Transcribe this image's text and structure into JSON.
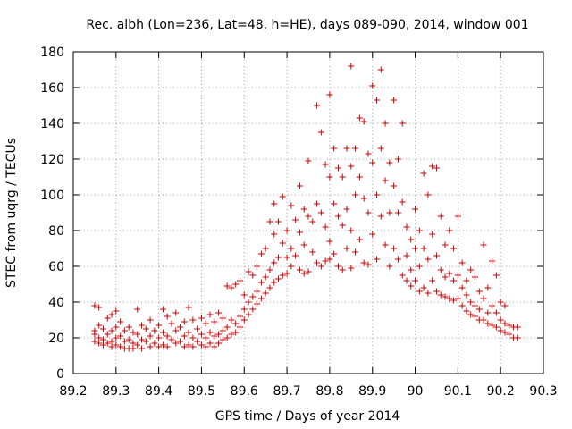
{
  "chart_data": {
    "type": "scatter",
    "title": "Rec. albh (Lon=236, Lat=48, h=HE), days 089-090, 2014, window 001",
    "xlabel": "GPS time / Days of year 2014",
    "ylabel": "STEC from uqrg / TECUs",
    "xlim": [
      89.2,
      90.3
    ],
    "ylim": [
      0,
      180
    ],
    "xticks": [
      89.2,
      89.3,
      89.4,
      89.5,
      89.6,
      89.7,
      89.8,
      89.9,
      90,
      90.1,
      90.2,
      90.3
    ],
    "xtick_labels": [
      "89.2",
      "89.3",
      "89.4",
      "89.5",
      "89.6",
      "89.7",
      "89.8",
      "89.9",
      "90",
      "90.1",
      "90.2",
      "90.3"
    ],
    "yticks": [
      0,
      20,
      40,
      60,
      80,
      100,
      120,
      140,
      160,
      180
    ],
    "ytick_labels": [
      "0",
      "20",
      "40",
      "60",
      "80",
      "100",
      "120",
      "140",
      "160",
      "180"
    ],
    "grid": true,
    "marker": "+",
    "color": "#cc0000",
    "series": [
      {
        "name": "STEC",
        "points": [
          [
            89.25,
            38
          ],
          [
            89.25,
            24
          ],
          [
            89.25,
            22
          ],
          [
            89.25,
            18
          ],
          [
            89.26,
            37
          ],
          [
            89.26,
            27
          ],
          [
            89.26,
            20
          ],
          [
            89.26,
            17
          ],
          [
            89.27,
            25
          ],
          [
            89.27,
            19
          ],
          [
            89.27,
            16
          ],
          [
            89.28,
            31
          ],
          [
            89.28,
            22
          ],
          [
            89.28,
            17
          ],
          [
            89.29,
            33
          ],
          [
            89.29,
            24
          ],
          [
            89.29,
            18
          ],
          [
            89.29,
            15
          ],
          [
            89.3,
            35
          ],
          [
            89.3,
            26
          ],
          [
            89.3,
            20
          ],
          [
            89.3,
            16
          ],
          [
            89.31,
            29
          ],
          [
            89.31,
            21
          ],
          [
            89.31,
            15
          ],
          [
            89.32,
            24
          ],
          [
            89.32,
            18
          ],
          [
            89.32,
            14
          ],
          [
            89.33,
            26
          ],
          [
            89.33,
            19
          ],
          [
            89.33,
            14
          ],
          [
            89.34,
            23
          ],
          [
            89.34,
            17
          ],
          [
            89.34,
            14
          ],
          [
            89.35,
            36
          ],
          [
            89.35,
            22
          ],
          [
            89.35,
            16
          ],
          [
            89.36,
            27
          ],
          [
            89.36,
            19
          ],
          [
            89.36,
            14
          ],
          [
            89.37,
            25
          ],
          [
            89.37,
            18
          ],
          [
            89.38,
            30
          ],
          [
            89.38,
            21
          ],
          [
            89.38,
            15
          ],
          [
            89.39,
            24
          ],
          [
            89.39,
            17
          ],
          [
            89.4,
            27
          ],
          [
            89.4,
            20
          ],
          [
            89.4,
            15
          ],
          [
            89.41,
            36
          ],
          [
            89.41,
            23
          ],
          [
            89.41,
            16
          ],
          [
            89.42,
            32
          ],
          [
            89.42,
            21
          ],
          [
            89.42,
            15
          ],
          [
            89.43,
            28
          ],
          [
            89.43,
            19
          ],
          [
            89.44,
            34
          ],
          [
            89.44,
            24
          ],
          [
            89.44,
            17
          ],
          [
            89.45,
            26
          ],
          [
            89.45,
            18
          ],
          [
            89.46,
            29
          ],
          [
            89.46,
            21
          ],
          [
            89.46,
            15
          ],
          [
            89.47,
            37
          ],
          [
            89.47,
            23
          ],
          [
            89.47,
            16
          ],
          [
            89.48,
            30
          ],
          [
            89.48,
            20
          ],
          [
            89.48,
            15
          ],
          [
            89.49,
            25
          ],
          [
            89.49,
            18
          ],
          [
            89.5,
            31
          ],
          [
            89.5,
            22
          ],
          [
            89.5,
            16
          ],
          [
            89.51,
            28
          ],
          [
            89.51,
            20
          ],
          [
            89.51,
            15
          ],
          [
            89.52,
            33
          ],
          [
            89.52,
            23
          ],
          [
            89.52,
            17
          ],
          [
            89.53,
            29
          ],
          [
            89.53,
            21
          ],
          [
            89.53,
            15
          ],
          [
            89.54,
            34
          ],
          [
            89.54,
            22
          ],
          [
            89.54,
            17
          ],
          [
            89.55,
            31
          ],
          [
            89.55,
            24
          ],
          [
            89.55,
            19
          ],
          [
            89.56,
            49
          ],
          [
            89.56,
            26
          ],
          [
            89.56,
            20
          ],
          [
            89.57,
            48
          ],
          [
            89.57,
            30
          ],
          [
            89.57,
            22
          ],
          [
            89.58,
            50
          ],
          [
            89.58,
            28
          ],
          [
            89.58,
            23
          ],
          [
            89.59,
            52
          ],
          [
            89.59,
            32
          ],
          [
            89.59,
            26
          ],
          [
            89.6,
            44
          ],
          [
            89.6,
            36
          ],
          [
            89.6,
            30
          ],
          [
            89.61,
            57
          ],
          [
            89.61,
            40
          ],
          [
            89.61,
            33
          ],
          [
            89.62,
            55
          ],
          [
            89.62,
            43
          ],
          [
            89.62,
            36
          ],
          [
            89.63,
            60
          ],
          [
            89.63,
            46
          ],
          [
            89.63,
            39
          ],
          [
            89.64,
            67
          ],
          [
            89.64,
            51
          ],
          [
            89.64,
            42
          ],
          [
            89.65,
            70
          ],
          [
            89.65,
            54
          ],
          [
            89.65,
            45
          ],
          [
            89.66,
            85
          ],
          [
            89.66,
            58
          ],
          [
            89.66,
            48
          ],
          [
            89.67,
            95
          ],
          [
            89.67,
            78
          ],
          [
            89.67,
            62
          ],
          [
            89.67,
            51
          ],
          [
            89.68,
            85
          ],
          [
            89.68,
            65
          ],
          [
            89.68,
            53
          ],
          [
            89.69,
            99
          ],
          [
            89.69,
            73
          ],
          [
            89.69,
            55
          ],
          [
            89.7,
            80
          ],
          [
            89.7,
            65
          ],
          [
            89.7,
            56
          ],
          [
            89.71,
            94
          ],
          [
            89.71,
            70
          ],
          [
            89.71,
            60
          ],
          [
            89.72,
            86
          ],
          [
            89.72,
            66
          ],
          [
            89.73,
            105
          ],
          [
            89.73,
            79
          ],
          [
            89.73,
            58
          ],
          [
            89.74,
            92
          ],
          [
            89.74,
            72
          ],
          [
            89.74,
            56
          ],
          [
            89.75,
            119
          ],
          [
            89.75,
            88
          ],
          [
            89.75,
            57
          ],
          [
            89.76,
            85
          ],
          [
            89.76,
            68
          ],
          [
            89.77,
            150
          ],
          [
            89.77,
            95
          ],
          [
            89.77,
            62
          ],
          [
            89.78,
            135
          ],
          [
            89.78,
            90
          ],
          [
            89.78,
            60
          ],
          [
            89.79,
            117
          ],
          [
            89.79,
            82
          ],
          [
            89.79,
            63
          ],
          [
            89.8,
            156
          ],
          [
            89.8,
            110
          ],
          [
            89.8,
            74
          ],
          [
            89.8,
            64
          ],
          [
            89.81,
            126
          ],
          [
            89.81,
            95
          ],
          [
            89.81,
            67
          ],
          [
            89.82,
            115
          ],
          [
            89.82,
            88
          ],
          [
            89.82,
            60
          ],
          [
            89.83,
            110
          ],
          [
            89.83,
            83
          ],
          [
            89.83,
            58
          ],
          [
            89.84,
            126
          ],
          [
            89.84,
            92
          ],
          [
            89.84,
            70
          ],
          [
            89.85,
            172
          ],
          [
            89.85,
            116
          ],
          [
            89.85,
            80
          ],
          [
            89.85,
            59
          ],
          [
            89.86,
            126
          ],
          [
            89.86,
            100
          ],
          [
            89.86,
            68
          ],
          [
            89.87,
            143
          ],
          [
            89.87,
            110
          ],
          [
            89.87,
            75
          ],
          [
            89.88,
            141
          ],
          [
            89.88,
            98
          ],
          [
            89.88,
            62
          ],
          [
            89.89,
            123
          ],
          [
            89.89,
            90
          ],
          [
            89.89,
            61
          ],
          [
            89.9,
            161
          ],
          [
            89.9,
            118
          ],
          [
            89.9,
            78
          ],
          [
            89.91,
            153
          ],
          [
            89.91,
            100
          ],
          [
            89.91,
            64
          ],
          [
            89.92,
            170
          ],
          [
            89.92,
            126
          ],
          [
            89.92,
            88
          ],
          [
            89.93,
            140
          ],
          [
            89.93,
            108
          ],
          [
            89.93,
            72
          ],
          [
            89.94,
            118
          ],
          [
            89.94,
            90
          ],
          [
            89.94,
            60
          ],
          [
            89.95,
            153
          ],
          [
            89.95,
            105
          ],
          [
            89.95,
            70
          ],
          [
            89.96,
            120
          ],
          [
            89.96,
            90
          ],
          [
            89.96,
            64
          ],
          [
            89.97,
            140
          ],
          [
            89.97,
            96
          ],
          [
            89.97,
            55
          ],
          [
            89.98,
            82
          ],
          [
            89.98,
            66
          ],
          [
            89.98,
            52
          ],
          [
            89.99,
            75
          ],
          [
            89.99,
            58
          ],
          [
            89.99,
            49
          ],
          [
            90,
            92
          ],
          [
            90,
            70
          ],
          [
            90,
            52
          ],
          [
            90.01,
            80
          ],
          [
            90.01,
            60
          ],
          [
            90.01,
            46
          ],
          [
            90.02,
            112
          ],
          [
            90.02,
            70
          ],
          [
            90.02,
            48
          ],
          [
            90.03,
            100
          ],
          [
            90.03,
            64
          ],
          [
            90.03,
            45
          ],
          [
            90.04,
            116
          ],
          [
            90.04,
            78
          ],
          [
            90.04,
            52
          ],
          [
            90.05,
            115
          ],
          [
            90.05,
            66
          ],
          [
            90.05,
            46
          ],
          [
            90.06,
            88
          ],
          [
            90.06,
            58
          ],
          [
            90.06,
            44
          ],
          [
            90.07,
            72
          ],
          [
            90.07,
            54
          ],
          [
            90.07,
            43
          ],
          [
            90.08,
            80
          ],
          [
            90.08,
            56
          ],
          [
            90.08,
            42
          ],
          [
            90.09,
            70
          ],
          [
            90.09,
            52
          ],
          [
            90.09,
            41
          ],
          [
            90.1,
            88
          ],
          [
            90.1,
            55
          ],
          [
            90.1,
            42
          ],
          [
            90.11,
            62
          ],
          [
            90.11,
            48
          ],
          [
            90.11,
            38
          ],
          [
            90.12,
            52
          ],
          [
            90.12,
            44
          ],
          [
            90.12,
            35
          ],
          [
            90.13,
            58
          ],
          [
            90.13,
            40
          ],
          [
            90.13,
            33
          ],
          [
            90.14,
            54
          ],
          [
            90.14,
            38
          ],
          [
            90.14,
            32
          ],
          [
            90.15,
            46
          ],
          [
            90.15,
            36
          ],
          [
            90.15,
            30
          ],
          [
            90.16,
            72
          ],
          [
            90.16,
            42
          ],
          [
            90.16,
            30
          ],
          [
            90.17,
            48
          ],
          [
            90.17,
            34
          ],
          [
            90.17,
            28
          ],
          [
            90.18,
            63
          ],
          [
            90.18,
            38
          ],
          [
            90.18,
            27
          ],
          [
            90.19,
            55
          ],
          [
            90.19,
            34
          ],
          [
            90.19,
            26
          ],
          [
            90.2,
            40
          ],
          [
            90.2,
            30
          ],
          [
            90.2,
            24
          ],
          [
            90.21,
            38
          ],
          [
            90.21,
            28
          ],
          [
            90.21,
            23
          ],
          [
            90.22,
            27
          ],
          [
            90.22,
            22
          ],
          [
            90.23,
            26
          ],
          [
            90.23,
            20
          ],
          [
            90.24,
            26
          ],
          [
            90.24,
            20
          ]
        ]
      }
    ]
  }
}
